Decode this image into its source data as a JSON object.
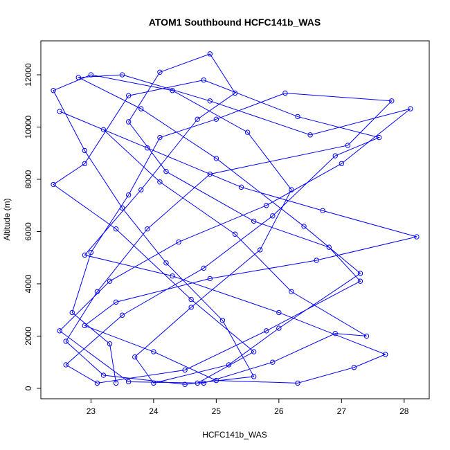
{
  "chart_data": {
    "type": "line",
    "title": "ATOM1 Southbound HCFC141b_WAS",
    "xlabel": "HCFC141b_WAS",
    "ylabel": "Altitude (m)",
    "xlim": [
      22.2,
      28.4
    ],
    "ylim": [
      -400,
      13300
    ],
    "x_ticks": [
      23,
      24,
      25,
      26,
      27,
      28
    ],
    "y_ticks": [
      0,
      2000,
      4000,
      6000,
      8000,
      10000,
      12000
    ],
    "grid": false,
    "legend": "none",
    "color": "#0000ff",
    "markers": "open-circle",
    "series": [
      {
        "points": [
          [
            23.4,
            200
          ],
          [
            23.3,
            1700
          ],
          [
            22.7,
            2900
          ],
          [
            23.0,
            5200
          ],
          [
            23.6,
            7400
          ],
          [
            24.1,
            9600
          ],
          [
            25.0,
            10300
          ],
          [
            26.1,
            11300
          ],
          [
            27.8,
            11000
          ],
          [
            27.1,
            9300
          ],
          [
            24.9,
            8200
          ],
          [
            23.9,
            6100
          ],
          [
            23.1,
            3700
          ],
          [
            22.6,
            1800
          ],
          [
            23.2,
            500
          ],
          [
            24.5,
            150
          ],
          [
            25.6,
            450
          ],
          [
            25.1,
            2600
          ],
          [
            24.2,
            4800
          ],
          [
            23.5,
            6900
          ],
          [
            22.9,
            9100
          ],
          [
            22.4,
            11400
          ],
          [
            23.0,
            12000
          ],
          [
            24.3,
            11400
          ],
          [
            25.5,
            9800
          ],
          [
            26.2,
            7600
          ],
          [
            25.7,
            5300
          ],
          [
            24.6,
            3100
          ],
          [
            23.7,
            1200
          ],
          [
            24.0,
            200
          ],
          [
            25.2,
            900
          ],
          [
            26.0,
            2300
          ],
          [
            27.3,
            4400
          ],
          [
            26.4,
            6200
          ],
          [
            25.0,
            8800
          ],
          [
            23.8,
            10700
          ],
          [
            22.8,
            11900
          ],
          [
            23.5,
            12000
          ],
          [
            24.9,
            11000
          ],
          [
            26.5,
            9700
          ],
          [
            28.1,
            10700
          ],
          [
            27.0,
            8600
          ],
          [
            25.8,
            7000
          ],
          [
            24.4,
            5600
          ],
          [
            23.3,
            4100
          ],
          [
            22.5,
            2200
          ],
          [
            23.6,
            250
          ],
          [
            24.8,
            200
          ],
          [
            25.9,
            1000
          ],
          [
            26.9,
            2100
          ],
          [
            27.4,
            2000
          ],
          [
            26.2,
            3700
          ],
          [
            25.3,
            5900
          ],
          [
            24.1,
            7900
          ],
          [
            23.2,
            9900
          ],
          [
            22.5,
            10600
          ],
          [
            23.9,
            9200
          ],
          [
            25.4,
            7700
          ],
          [
            26.7,
            6800
          ],
          [
            28.2,
            5800
          ],
          [
            26.6,
            4900
          ],
          [
            24.9,
            4200
          ],
          [
            23.4,
            3300
          ],
          [
            22.9,
            2400
          ],
          [
            24.0,
            1400
          ],
          [
            25.0,
            300
          ],
          [
            26.3,
            200
          ],
          [
            27.2,
            800
          ],
          [
            27.7,
            1300
          ],
          [
            26.0,
            2900
          ],
          [
            24.3,
            4300
          ],
          [
            22.9,
            5100
          ],
          [
            23.8,
            7600
          ],
          [
            24.7,
            10300
          ],
          [
            25.3,
            11300
          ],
          [
            24.9,
            12800
          ],
          [
            24.1,
            12100
          ],
          [
            23.6,
            10200
          ],
          [
            24.2,
            8300
          ],
          [
            25.6,
            6400
          ],
          [
            26.8,
            5400
          ],
          [
            27.3,
            4100
          ],
          [
            25.8,
            2200
          ],
          [
            24.5,
            700
          ],
          [
            23.1,
            200
          ],
          [
            22.6,
            900
          ],
          [
            23.5,
            2800
          ],
          [
            24.8,
            4600
          ],
          [
            25.9,
            6600
          ],
          [
            26.9,
            8900
          ],
          [
            27.6,
            9600
          ],
          [
            26.3,
            10400
          ],
          [
            24.8,
            11800
          ],
          [
            23.6,
            11200
          ],
          [
            22.9,
            8600
          ],
          [
            22.4,
            7800
          ],
          [
            23.4,
            6100
          ],
          [
            24.6,
            3400
          ],
          [
            25.6,
            1400
          ],
          [
            24.7,
            200
          ]
        ]
      }
    ]
  }
}
